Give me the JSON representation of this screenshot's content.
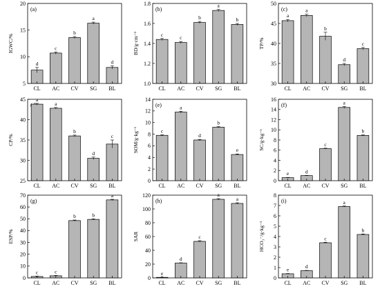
{
  "chart_data": [
    {
      "type": "bar",
      "panel_label": "(a)",
      "ylabel": "IGWC/%",
      "ylim": [
        5,
        20
      ],
      "yticks": [
        5,
        10,
        15,
        20
      ],
      "categories": [
        "CL",
        "AC",
        "CV",
        "SG",
        "BL"
      ],
      "values": [
        7.5,
        10.7,
        13.6,
        16.3,
        8.0
      ],
      "errors": [
        0.5,
        0.2,
        0.2,
        0.2,
        0.3
      ],
      "letters": [
        "d",
        "c",
        "b",
        "a",
        "d"
      ]
    },
    {
      "type": "bar",
      "panel_label": "(b)",
      "ylabel": "BD/g·cm⁻³",
      "ylim": [
        1.0,
        1.8
      ],
      "yticks": [
        1.0,
        1.2,
        1.4,
        1.6,
        1.8
      ],
      "categories": [
        "CL",
        "AC",
        "CV",
        "SG",
        "BL"
      ],
      "values": [
        1.44,
        1.41,
        1.61,
        1.73,
        1.59
      ],
      "errors": [
        0.01,
        0.01,
        0.01,
        0.01,
        0.01
      ],
      "letters": [
        "c",
        "c",
        "b",
        "a",
        "b"
      ]
    },
    {
      "type": "bar",
      "panel_label": "(c)",
      "ylabel": "TP/%",
      "ylim": [
        30,
        50
      ],
      "yticks": [
        30,
        35,
        40,
        45,
        50
      ],
      "categories": [
        "CL",
        "AC",
        "CV",
        "SG",
        "BL"
      ],
      "values": [
        45.7,
        47.0,
        41.8,
        34.7,
        38.7
      ],
      "errors": [
        0.3,
        0.3,
        1.0,
        0.3,
        0.3
      ],
      "letters": [
        "a",
        "a",
        "b",
        "d",
        "c"
      ]
    },
    {
      "type": "bar",
      "panel_label": "(d)",
      "ylabel": "CP/%",
      "ylim": [
        25,
        45
      ],
      "yticks": [
        25,
        30,
        35,
        40,
        45
      ],
      "categories": [
        "CL",
        "AC",
        "CV",
        "SG",
        "BL"
      ],
      "values": [
        43.8,
        42.8,
        36.0,
        30.5,
        34.0
      ],
      "errors": [
        0.2,
        0.2,
        0.2,
        0.3,
        1.0
      ],
      "letters": [
        "a",
        "a",
        "b",
        "d",
        "c"
      ]
    },
    {
      "type": "bar",
      "panel_label": "(e)",
      "ylabel": "SOM/g·kg⁻¹",
      "ylim": [
        0,
        14
      ],
      "yticks": [
        0,
        2,
        4,
        6,
        8,
        10,
        12,
        14
      ],
      "categories": [
        "CL",
        "AC",
        "CV",
        "SG",
        "BL"
      ],
      "values": [
        7.8,
        11.8,
        7.0,
        9.2,
        4.5
      ],
      "errors": [
        0.1,
        0.15,
        0.1,
        0.1,
        0.1
      ],
      "letters": [
        "c",
        "a",
        "d",
        "b",
        "e"
      ]
    },
    {
      "type": "bar",
      "panel_label": "(f)",
      "ylabel": "SC/g·kg⁻¹",
      "ylim": [
        0,
        16
      ],
      "yticks": [
        0,
        2,
        4,
        6,
        8,
        10,
        12,
        14,
        16
      ],
      "categories": [
        "CL",
        "AC",
        "CV",
        "SG",
        "BL"
      ],
      "values": [
        0.6,
        1.0,
        6.3,
        14.4,
        8.9
      ],
      "errors": [
        0.05,
        0.05,
        0.1,
        0.2,
        0.1
      ],
      "letters": [
        "e",
        "d",
        "c",
        "a",
        "b"
      ]
    },
    {
      "type": "bar",
      "panel_label": "(g)",
      "ylabel": "ESP/%",
      "ylim": [
        0,
        70
      ],
      "yticks": [
        0,
        10,
        20,
        30,
        40,
        50,
        60,
        70
      ],
      "categories": [
        "CL",
        "AC",
        "CV",
        "SG",
        "BL"
      ],
      "values": [
        1.2,
        1.8,
        48.5,
        49.5,
        66.0
      ],
      "errors": [
        0.3,
        0.3,
        0.5,
        0.5,
        0.5
      ],
      "letters": [
        "c",
        "c",
        "b",
        "b",
        "a"
      ]
    },
    {
      "type": "bar",
      "panel_label": "(h)",
      "ylabel": "SAR",
      "ylim": [
        0,
        120
      ],
      "yticks": [
        0,
        20,
        40,
        60,
        80,
        100,
        120
      ],
      "categories": [
        "CL",
        "AC",
        "CV",
        "SG",
        "BL"
      ],
      "values": [
        0.8,
        21.5,
        53.0,
        114.0,
        108.0
      ],
      "errors": [
        0.2,
        0.5,
        1.0,
        1.0,
        1.0
      ],
      "letters": [
        "e",
        "d",
        "c",
        "a",
        "a"
      ]
    },
    {
      "type": "bar",
      "panel_label": "(i)",
      "ylabel": "HCO₃⁻/g·kg⁻¹",
      "ylim": [
        0,
        8
      ],
      "yticks": [
        0,
        1,
        2,
        3,
        4,
        5,
        6,
        7,
        8
      ],
      "categories": [
        "CL",
        "AC",
        "CV",
        "SG",
        "BL"
      ],
      "values": [
        0.4,
        0.7,
        3.4,
        6.9,
        4.2
      ],
      "errors": [
        0.03,
        0.03,
        0.05,
        0.05,
        0.05
      ],
      "letters": [
        "e",
        "d",
        "c",
        "a",
        "b"
      ]
    }
  ]
}
